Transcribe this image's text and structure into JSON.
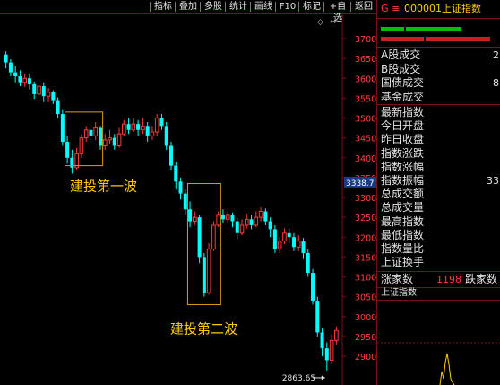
{
  "toolbar": {
    "items": [
      "指标",
      "叠加",
      "多股",
      "统计",
      "画线",
      "F10",
      "标记",
      "+自选",
      "返回"
    ]
  },
  "price_axis": {
    "labels": [
      "3700",
      "3650",
      "3600",
      "3550",
      "3500",
      "3450",
      "3400",
      "3350",
      "3300",
      "3250",
      "3200",
      "3150",
      "3100",
      "3050",
      "3000",
      "2950",
      "2900"
    ],
    "current_price": "3338.7",
    "low_marker": "2863.65"
  },
  "annotations": {
    "wave1": "建投第一波",
    "wave2": "建投第二波"
  },
  "panel": {
    "prefix": "G ≡",
    "code": "000001",
    "name": "上证指数",
    "colors": {
      "up": "#ff3b3b",
      "down": "#00ffff",
      "green": "#00c000",
      "text": "#e6e6e6",
      "gold": "#ffcc00"
    },
    "group1": [
      "A股成交",
      "B股成交",
      "国债成交",
      "基金成交"
    ],
    "group1_values": [
      "2",
      "",
      "8",
      ""
    ],
    "group2": [
      "最新指数",
      "今日开盘",
      "昨日收盘",
      "指数涨跌",
      "指数涨幅",
      "指数振幅",
      "总成交额",
      "总成交量",
      "最高指数",
      "最低指数",
      "指数量比",
      "上证换手"
    ],
    "group2_values": [
      "",
      "",
      "",
      "",
      "",
      "33",
      "",
      "",
      "",
      "",
      "",
      ""
    ],
    "breadth_up_label": "涨家数",
    "breadth_up_value": "1198",
    "breadth_down_label": "跌家数",
    "mini_title": "上证指数"
  }
}
